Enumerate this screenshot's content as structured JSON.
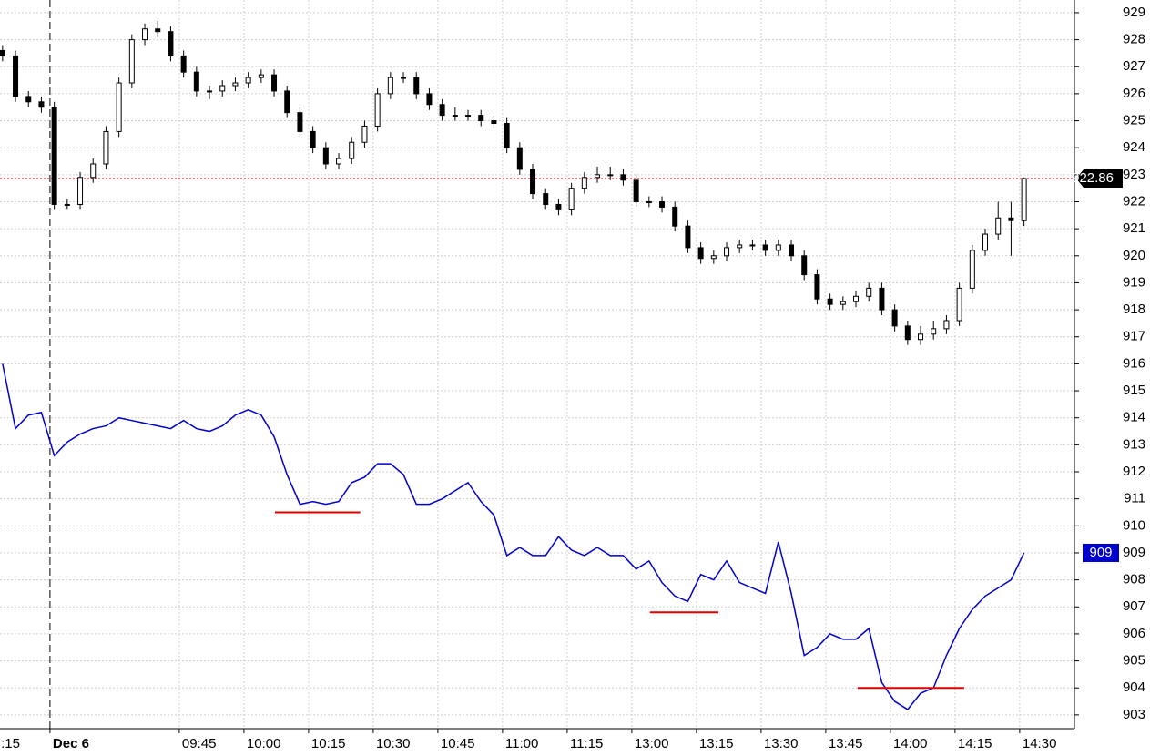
{
  "chart_data": {
    "type": "candlestick",
    "x": [
      -11,
      -8,
      -5,
      -2,
      1,
      4,
      7,
      10,
      13,
      16,
      19,
      22,
      25,
      28,
      31,
      34,
      37,
      40,
      43,
      46,
      49,
      52,
      55,
      58,
      61,
      64,
      67,
      70,
      73,
      76,
      79,
      82,
      85,
      88,
      91,
      94,
      97,
      100,
      103,
      106,
      109,
      112,
      115,
      118,
      121,
      124,
      127,
      130,
      133,
      136,
      139,
      142,
      145,
      148,
      151,
      154,
      157,
      160,
      163,
      166,
      169,
      172,
      175,
      178,
      181,
      184,
      187,
      190,
      193,
      196,
      199,
      202,
      205,
      208,
      211,
      214,
      217,
      220,
      223,
      226
    ],
    "candles": {
      "color": "#000000",
      "open": [
        927.6,
        927.4,
        925.9,
        925.7,
        925.5,
        921.9,
        921.9,
        922.9,
        923.4,
        924.6,
        926.4,
        928.0,
        928.4,
        928.3,
        927.4,
        926.8,
        926.1,
        926.1,
        926.3,
        926.4,
        926.6,
        926.7,
        926.1,
        925.3,
        924.6,
        924.0,
        923.4,
        923.6,
        924.2,
        924.8,
        926.0,
        926.6,
        926.6,
        926.0,
        925.6,
        925.2,
        925.2,
        925.2,
        925.0,
        924.9,
        924.0,
        923.2,
        922.3,
        921.9,
        921.7,
        922.5,
        922.9,
        923.0,
        923.0,
        922.8,
        922.0,
        922.0,
        921.8,
        921.1,
        920.3,
        919.9,
        920.0,
        920.3,
        920.4,
        920.4,
        920.2,
        920.4,
        920.0,
        919.3,
        918.4,
        918.2,
        918.3,
        918.5,
        918.8,
        918.0,
        917.4,
        916.9,
        917.1,
        917.3,
        917.6,
        918.8,
        920.2,
        920.8,
        921.4,
        921.3
      ],
      "high": [
        927.8,
        927.6,
        926.1,
        925.9,
        925.7,
        922.1,
        923.1,
        923.6,
        924.8,
        926.6,
        928.2,
        928.6,
        928.7,
        928.5,
        927.6,
        927.0,
        926.3,
        926.5,
        926.6,
        926.8,
        926.9,
        926.9,
        926.3,
        925.5,
        924.8,
        924.2,
        923.8,
        924.4,
        925.0,
        926.2,
        926.8,
        926.8,
        926.8,
        926.2,
        925.8,
        925.5,
        925.4,
        925.4,
        925.2,
        925.1,
        924.2,
        923.4,
        922.5,
        922.1,
        922.7,
        923.1,
        923.3,
        923.3,
        923.2,
        923.0,
        922.2,
        922.2,
        922.0,
        921.3,
        920.5,
        920.2,
        920.5,
        920.6,
        920.6,
        920.6,
        920.6,
        920.6,
        920.2,
        919.5,
        918.6,
        918.5,
        918.7,
        919.0,
        919.0,
        918.2,
        917.6,
        917.4,
        917.6,
        917.8,
        919.0,
        920.4,
        921.0,
        922.0,
        922.0,
        922.9
      ],
      "low": [
        927.2,
        925.7,
        925.5,
        925.3,
        921.7,
        921.7,
        921.7,
        922.7,
        923.2,
        924.4,
        926.2,
        927.8,
        928.1,
        927.2,
        926.6,
        925.9,
        925.8,
        925.9,
        926.1,
        926.2,
        926.4,
        925.9,
        925.1,
        924.4,
        923.8,
        923.2,
        923.2,
        923.4,
        924.0,
        924.6,
        925.8,
        926.4,
        925.8,
        925.4,
        925.0,
        925.0,
        925.0,
        924.8,
        924.7,
        923.8,
        923.0,
        922.1,
        921.7,
        921.5,
        921.5,
        922.3,
        922.7,
        922.8,
        922.6,
        921.8,
        921.8,
        921.6,
        920.9,
        920.1,
        919.7,
        919.7,
        919.8,
        920.1,
        920.2,
        920.0,
        920.0,
        919.8,
        919.1,
        918.2,
        918.0,
        918.0,
        918.1,
        918.3,
        917.8,
        917.2,
        916.7,
        916.7,
        916.9,
        917.1,
        917.4,
        918.6,
        920.0,
        920.6,
        920.0,
        921.1
      ],
      "close": [
        927.4,
        925.9,
        925.7,
        925.5,
        921.9,
        921.9,
        922.9,
        923.4,
        924.6,
        926.4,
        928.0,
        928.4,
        928.3,
        927.4,
        926.8,
        926.1,
        926.1,
        926.3,
        926.4,
        926.6,
        926.7,
        926.1,
        925.3,
        924.6,
        924.0,
        923.4,
        923.6,
        924.2,
        924.8,
        926.0,
        926.6,
        926.6,
        926.0,
        925.6,
        925.2,
        925.2,
        925.2,
        925.0,
        924.9,
        924.0,
        923.2,
        922.3,
        921.9,
        921.7,
        922.5,
        922.9,
        923.0,
        923.0,
        922.8,
        922.0,
        922.0,
        921.8,
        921.1,
        920.3,
        919.9,
        920.0,
        920.3,
        920.4,
        920.4,
        920.2,
        920.4,
        920.0,
        919.3,
        918.4,
        918.2,
        918.3,
        918.5,
        918.8,
        918.0,
        917.4,
        916.9,
        917.1,
        917.3,
        917.6,
        918.8,
        920.2,
        920.8,
        921.4,
        921.3,
        922.86
      ]
    },
    "line": {
      "color": "#0000cc",
      "values": [
        916.0,
        913.6,
        914.1,
        914.2,
        912.6,
        913.1,
        913.4,
        913.6,
        913.7,
        914.0,
        913.9,
        913.8,
        913.7,
        913.6,
        913.9,
        913.6,
        913.5,
        913.7,
        914.1,
        914.3,
        914.1,
        913.3,
        911.9,
        910.8,
        910.9,
        910.8,
        910.9,
        911.6,
        911.8,
        912.3,
        912.3,
        911.9,
        910.8,
        910.8,
        911.0,
        911.3,
        911.6,
        910.9,
        910.4,
        908.9,
        909.2,
        908.9,
        908.9,
        909.6,
        909.1,
        908.9,
        909.2,
        908.9,
        908.9,
        908.4,
        908.7,
        907.9,
        907.4,
        907.2,
        908.2,
        908.0,
        908.7,
        907.9,
        907.7,
        907.5,
        909.4,
        907.5,
        905.2,
        905.5,
        906.0,
        905.8,
        905.8,
        906.2,
        904.2,
        903.5,
        903.2,
        903.8,
        904.0,
        905.2,
        906.2,
        906.9,
        907.4,
        907.7,
        908.0,
        909
      ]
    },
    "support_lines": {
      "color": "#e00000",
      "x": [
        [
          52.2,
          72.0
        ],
        [
          139.2,
          155.1
        ],
        [
          187.4,
          212.1
        ]
      ],
      "y": [
        910.5,
        906.8,
        904.0
      ]
    },
    "xlim": [
      -11.6,
      237.7
    ],
    "ylim": [
      902.49,
      929.47
    ],
    "xticks": [
      {
        "value": -12,
        "label": ":15"
      },
      {
        "value": 0,
        "label": "Dec 6"
      },
      {
        "value": 30,
        "label": "09:45"
      },
      {
        "value": 45,
        "label": "10:00"
      },
      {
        "value": 60,
        "label": "10:15"
      },
      {
        "value": 75,
        "label": "10:30"
      },
      {
        "value": 90,
        "label": "10:45"
      },
      {
        "value": 105,
        "label": "11:00"
      },
      {
        "value": 120,
        "label": "11:15"
      },
      {
        "value": 135,
        "label": "13:00"
      },
      {
        "value": 150,
        "label": "13:15"
      },
      {
        "value": 165,
        "label": "13:30"
      },
      {
        "value": 180,
        "label": "13:45"
      },
      {
        "value": 195,
        "label": "14:00"
      },
      {
        "value": 210,
        "label": "14:15"
      },
      {
        "value": 225,
        "label": "14:30"
      }
    ],
    "yticks": [
      903,
      904,
      905,
      906,
      907,
      908,
      909,
      910,
      911,
      912,
      913,
      914,
      915,
      916,
      917,
      918,
      919,
      920,
      921,
      922,
      923,
      924,
      925,
      926,
      927,
      928,
      929
    ],
    "grid": true
  }
}
